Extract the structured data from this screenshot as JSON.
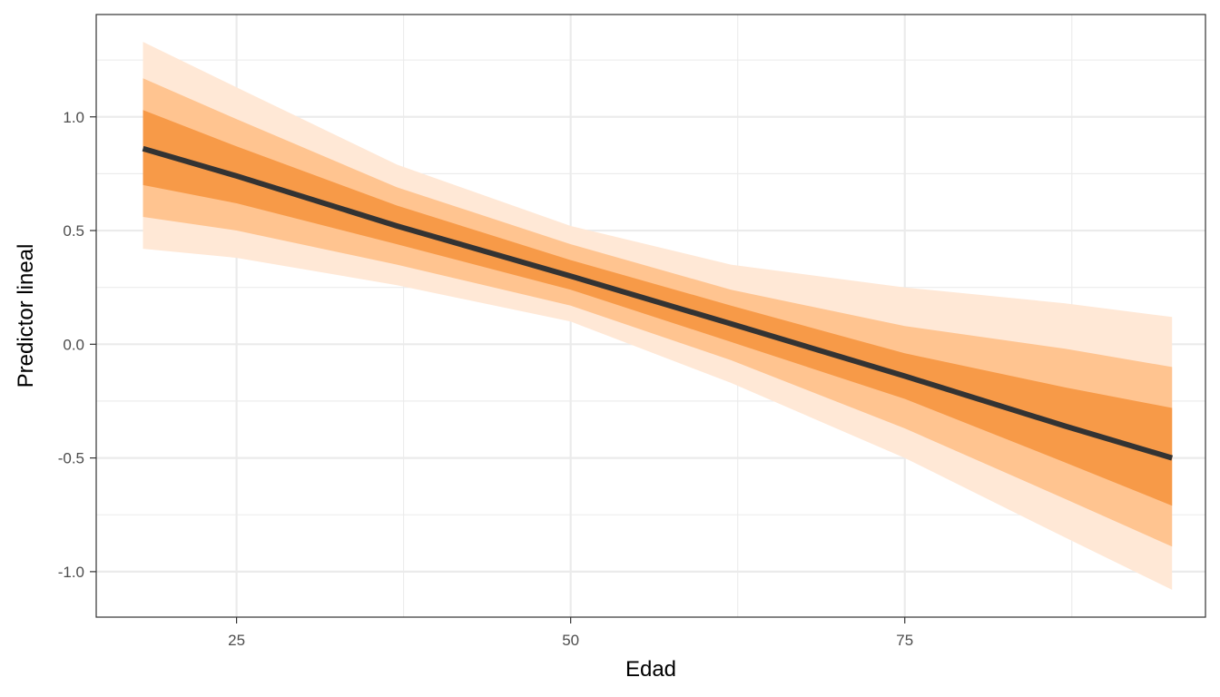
{
  "chart_data": {
    "type": "area",
    "xlabel": "Edad",
    "ylabel": "Predictor lineal",
    "xlim": [
      14.5,
      97.5
    ],
    "ylim": [
      -1.2,
      1.45
    ],
    "x_ticks": [
      25,
      50,
      75
    ],
    "x_tick_labels": [
      "25",
      "50",
      "75"
    ],
    "x_minor_ticks": [
      37.5,
      62.5,
      87.5
    ],
    "y_ticks": [
      -1.0,
      -0.5,
      0.0,
      0.5,
      1.0
    ],
    "y_tick_labels": [
      "-1.0",
      "-0.5",
      "0.0",
      "0.5",
      "1.0"
    ],
    "y_minor_ticks": [
      -0.75,
      -0.25,
      0.25,
      0.75,
      1.25
    ],
    "grid": true,
    "x": [
      18,
      25,
      37,
      50,
      62,
      75,
      87,
      95
    ],
    "line": {
      "color": "#333333",
      "values": [
        0.86,
        0.74,
        0.52,
        0.3,
        0.09,
        -0.14,
        -0.36,
        -0.5
      ]
    },
    "bands": [
      {
        "level": "outer",
        "color": "#ffe8d6",
        "lower": [
          0.42,
          0.38,
          0.26,
          0.1,
          -0.17,
          -0.5,
          -0.85,
          -1.08
        ],
        "upper": [
          1.33,
          1.13,
          0.79,
          0.52,
          0.35,
          0.25,
          0.18,
          0.12
        ]
      },
      {
        "level": "middle",
        "color": "#ffc490",
        "lower": [
          0.56,
          0.5,
          0.35,
          0.17,
          -0.07,
          -0.37,
          -0.68,
          -0.89
        ],
        "upper": [
          1.17,
          0.99,
          0.69,
          0.44,
          0.24,
          0.08,
          -0.02,
          -0.1
        ]
      },
      {
        "level": "inner",
        "color": "#f79a48",
        "lower": [
          0.7,
          0.62,
          0.44,
          0.24,
          0.01,
          -0.24,
          -0.52,
          -0.71
        ],
        "upper": [
          1.03,
          0.87,
          0.61,
          0.37,
          0.17,
          -0.04,
          -0.19,
          -0.28
        ]
      }
    ]
  }
}
